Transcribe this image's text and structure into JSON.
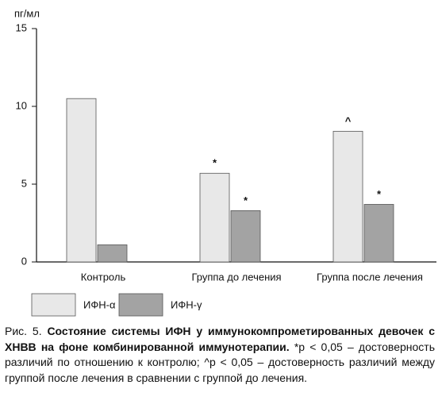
{
  "chart_data": {
    "type": "bar",
    "y_label": "пг/мл",
    "categories": [
      "Контроль",
      "Группа до лечения",
      "Группа после лечения"
    ],
    "series": [
      {
        "name": "ИФН-α",
        "color": "#e8e8e8",
        "values": [
          10.5,
          5.7,
          8.4
        ],
        "annotations": [
          null,
          "*",
          "^"
        ]
      },
      {
        "name": "ИФН-γ",
        "color": "#a3a3a3",
        "values": [
          1.1,
          3.3,
          3.7
        ],
        "annotations": [
          null,
          "*",
          "*"
        ]
      }
    ],
    "ylim": [
      0,
      15
    ],
    "yticks": [
      0,
      5,
      10,
      15
    ],
    "grid": false,
    "caption": {
      "label": "Рис. 5.",
      "title": "Состояние системы ИФН у иммунокомпрометированных девочек с ХНВВ на фоне комбинированной иммунотерапии.",
      "note": "*p < 0,05 – достоверность различий по отношению к контролю; ^p < 0,05 – достоверность различий между группой после лечения в сравнении с группой до лечения."
    }
  }
}
